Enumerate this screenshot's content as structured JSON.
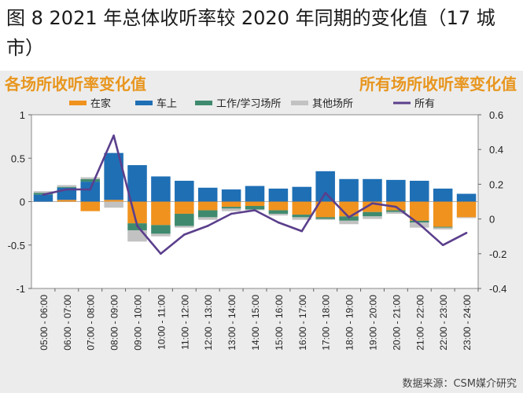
{
  "title": "图 8 2021 年总体收听率较 2020 年同期的变化值（17 城市）",
  "left_axis_title": "各场所收听率变化值",
  "right_axis_title": "所有场所收听率变化值",
  "source": "数据来源：CSM媒介研究",
  "colors": {
    "在家": "#f0921e",
    "车上": "#1f6fb5",
    "工作/学习场所": "#3f8a6e",
    "其他场所": "#c2c2c2",
    "所有": "#5b3f8c"
  },
  "chart_data": {
    "type": "bar",
    "stacked": true,
    "categories": [
      "05:00 - 06:00",
      "06:00 - 07:00",
      "07:00 - 08:00",
      "08:00 - 09:00",
      "09:00 - 10:00",
      "10:00 - 11:00",
      "11:00 - 12:00",
      "12:00 - 13:00",
      "13:00 - 14:00",
      "14:00 - 15:00",
      "15:00 - 16:00",
      "16:00 - 17:00",
      "17:00 - 18:00",
      "18:00 - 19:00",
      "19:00 - 20:00",
      "20:00 - 21:00",
      "21:00 - 22:00",
      "22:00 - 23:00",
      "23:00 - 24:00"
    ],
    "series": [
      {
        "name": "在家",
        "axis": "left",
        "values": [
          0.0,
          0.02,
          -0.11,
          0.02,
          -0.25,
          -0.27,
          -0.14,
          -0.1,
          -0.06,
          -0.05,
          -0.1,
          -0.15,
          -0.18,
          -0.17,
          -0.12,
          -0.1,
          -0.22,
          -0.29,
          -0.18
        ]
      },
      {
        "name": "车上",
        "axis": "left",
        "values": [
          0.08,
          0.14,
          0.23,
          0.54,
          0.42,
          0.29,
          0.24,
          0.16,
          0.14,
          0.18,
          0.15,
          0.17,
          0.35,
          0.26,
          0.26,
          0.25,
          0.24,
          0.15,
          0.09
        ]
      },
      {
        "name": "工作/学习场所",
        "axis": "left",
        "values": [
          0.02,
          0.01,
          0.03,
          0.0,
          -0.08,
          -0.1,
          -0.14,
          -0.08,
          -0.02,
          -0.04,
          -0.04,
          -0.03,
          -0.02,
          -0.05,
          -0.05,
          -0.02,
          -0.02,
          -0.01,
          0.0
        ]
      },
      {
        "name": "其他场所",
        "axis": "left",
        "values": [
          0.02,
          0.02,
          0.02,
          -0.07,
          -0.13,
          -0.03,
          -0.02,
          -0.03,
          -0.03,
          -0.01,
          -0.02,
          -0.03,
          -0.01,
          -0.04,
          -0.03,
          -0.02,
          -0.06,
          -0.02,
          -0.01
        ]
      },
      {
        "name": "所有",
        "axis": "right",
        "type": "line",
        "values": [
          0.14,
          0.17,
          0.17,
          0.48,
          -0.04,
          -0.2,
          -0.09,
          -0.04,
          0.03,
          0.05,
          -0.02,
          -0.07,
          0.15,
          0.01,
          0.09,
          0.07,
          -0.03,
          -0.15,
          -0.08
        ]
      }
    ],
    "left_axis": {
      "ylim": [
        -1,
        1
      ],
      "ticks": [
        "-1",
        "-0.5",
        "0",
        "0.5",
        "1"
      ],
      "tick_values": [
        -1,
        -0.5,
        0,
        0.5,
        1
      ]
    },
    "right_axis": {
      "ylim": [
        -0.4,
        0.6
      ],
      "ticks": [
        "-0.4",
        "-0.2",
        "0",
        "0.2",
        "0.4",
        "0.6"
      ],
      "tick_values": [
        -0.4,
        -0.2,
        0,
        0.2,
        0.4,
        0.6
      ]
    },
    "legend": [
      "在家",
      "车上",
      "工作/学习场所",
      "其他场所",
      "所有"
    ],
    "legend_position": "top",
    "grid": false
  }
}
